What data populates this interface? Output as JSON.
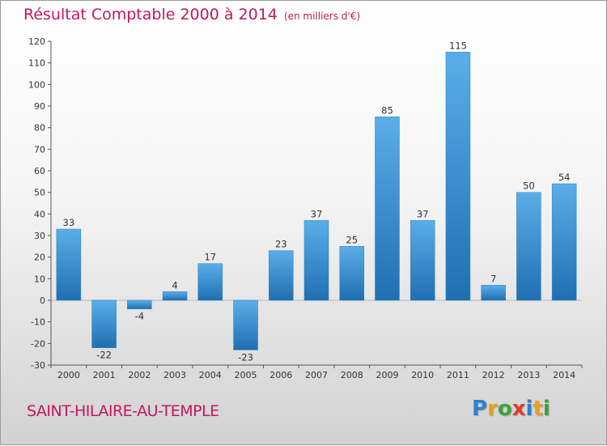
{
  "header": {
    "title": "Résultat Comptable 2000 à 2014",
    "subtitle": "(en milliers d'€)"
  },
  "footer": {
    "location": "SAINT-HILAIRE-AU-TEMPLE",
    "logo_letters": [
      {
        "ch": "P",
        "color": "#2e7fd0"
      },
      {
        "ch": "r",
        "color": "#e6a21b"
      },
      {
        "ch": "o",
        "color": "#3aa538"
      },
      {
        "ch": "x",
        "color": "#e23b2e"
      },
      {
        "ch": "i",
        "color": "#2e7fd0"
      },
      {
        "ch": "t",
        "color": "#e6a21b"
      },
      {
        "ch": "i",
        "color": "#3aa538"
      }
    ]
  },
  "colors": {
    "bar_light": "#5aaee8",
    "bar_dark": "#1f6fb2",
    "title": "#c2185b"
  },
  "chart_data": {
    "type": "bar",
    "title": "Résultat Comptable 2000 à 2014",
    "subtitle": "(en milliers d'€)",
    "categories": [
      "2000",
      "2001",
      "2002",
      "2003",
      "2004",
      "2005",
      "2006",
      "2007",
      "2008",
      "2009",
      "2010",
      "2011",
      "2012",
      "2013",
      "2014"
    ],
    "values": [
      33,
      -22,
      -4,
      4,
      17,
      -23,
      23,
      37,
      25,
      85,
      37,
      115,
      7,
      50,
      54
    ],
    "ylim": [
      -30,
      120
    ],
    "yticks": [
      -30,
      -20,
      -10,
      0,
      10,
      20,
      30,
      40,
      50,
      60,
      70,
      80,
      90,
      100,
      110,
      120
    ],
    "grid": false,
    "legend": "none",
    "xlabel": "",
    "ylabel": ""
  }
}
